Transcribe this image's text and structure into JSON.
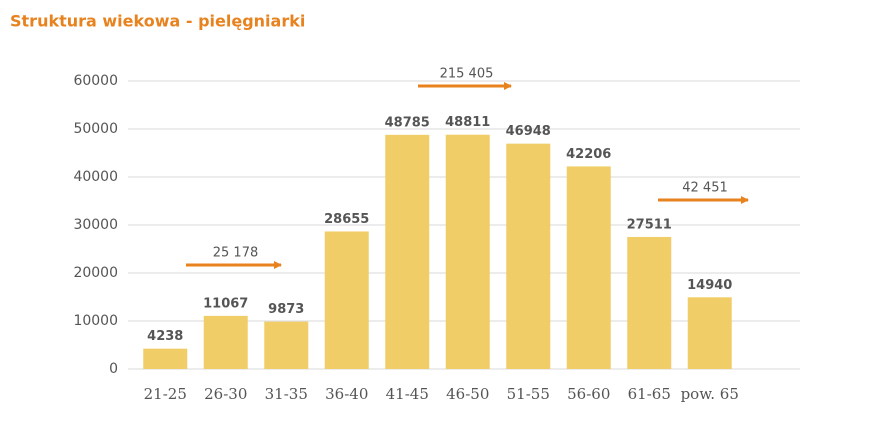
{
  "chart_data": {
    "type": "bar",
    "title": "Struktura wiekowa - pielęgniarki",
    "categories": [
      "21-25",
      "26-30",
      "31-35",
      "36-40",
      "41-45",
      "46-50",
      "51-55",
      "56-60",
      "61-65",
      "pow. 65"
    ],
    "values": [
      4238,
      11067,
      9873,
      28655,
      48785,
      48811,
      46948,
      42206,
      27511,
      14940
    ],
    "color": "#f1cd68",
    "ylim": [
      0,
      60000
    ],
    "yticks": [
      0,
      10000,
      20000,
      30000,
      40000,
      50000,
      60000
    ],
    "grid": true,
    "annotations": [
      {
        "text": "25 178"
      },
      {
        "text": "215 405"
      },
      {
        "text": "42 451"
      }
    ],
    "annotation_color": "#e8821e"
  }
}
